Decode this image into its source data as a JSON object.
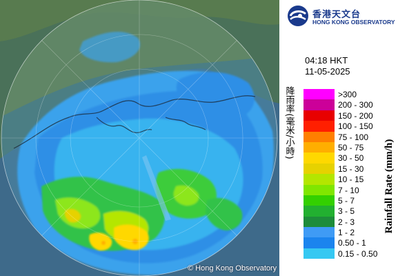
{
  "map": {
    "copyright": "© Hong Kong Observatory"
  },
  "header": {
    "logo_zh": "香港天文台",
    "logo_en": "HONG KONG OBSERVATORY"
  },
  "info": {
    "time": "04:18 HKT",
    "date": "11-05-2025"
  },
  "legend": {
    "title_zh": "降雨率(毫米/小時)",
    "title_en": "Rainfall Rate (mm/h)",
    "items": [
      {
        "label": ">300",
        "color": "#ff00ff"
      },
      {
        "label": "200 - 300",
        "color": "#cc0099"
      },
      {
        "label": "150 - 200",
        "color": "#e80000"
      },
      {
        "label": "100 - 150",
        "color": "#ff1f00"
      },
      {
        "label": "75 - 100",
        "color": "#ff7f00"
      },
      {
        "label": "50 - 75",
        "color": "#ffae00"
      },
      {
        "label": "30 - 50",
        "color": "#ffd800"
      },
      {
        "label": "15 - 30",
        "color": "#e6d200"
      },
      {
        "label": "10 - 15",
        "color": "#b4e600"
      },
      {
        "label": "7 - 10",
        "color": "#80e600"
      },
      {
        "label": "5 - 7",
        "color": "#33d000"
      },
      {
        "label": "3 - 5",
        "color": "#22b030"
      },
      {
        "label": "2 - 3",
        "color": "#1d8c3a"
      },
      {
        "label": "1 - 2",
        "color": "#3f9bf5"
      },
      {
        "label": "0.50 - 1",
        "color": "#1b84ee"
      },
      {
        "label": "0.15 - 0.50",
        "color": "#36c8f2"
      }
    ]
  }
}
